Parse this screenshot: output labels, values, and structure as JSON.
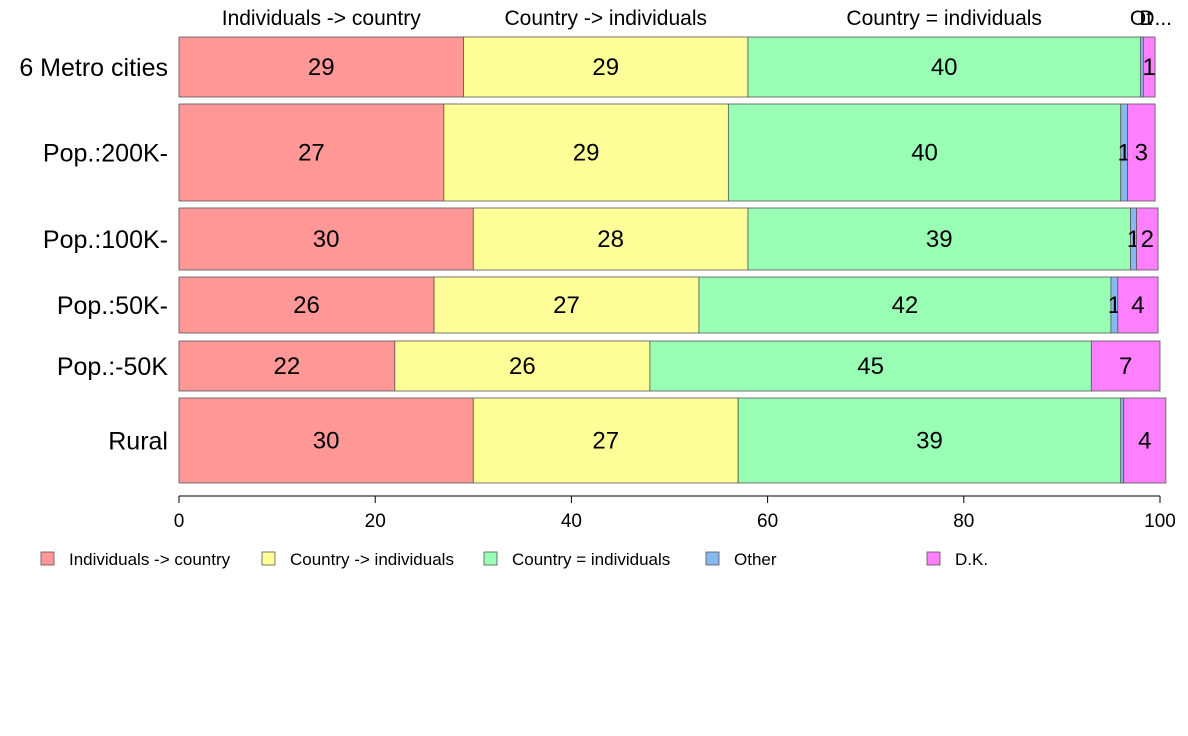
{
  "chart_data": {
    "type": "bar",
    "orientation": "horizontal",
    "stacked": true,
    "categories": [
      "6 Metro cities",
      "Pop.:200K-",
      "Pop.:100K-",
      "Pop.:50K-",
      "Pop.:-50K",
      "Rural"
    ],
    "series": [
      {
        "name": "Individuals -> country",
        "color": "#ff9896",
        "values": [
          29,
          27,
          30,
          26,
          22,
          30
        ],
        "labels": [
          "29",
          "27",
          "30",
          "26",
          "22",
          "30"
        ]
      },
      {
        "name": "Country -> individuals",
        "color": "#ffff99",
        "values": [
          29,
          29,
          28,
          27,
          26,
          27
        ],
        "labels": [
          "29",
          "29",
          "28",
          "27",
          "26",
          "27"
        ]
      },
      {
        "name": "Country = individuals",
        "color": "#98ffb4",
        "values": [
          40,
          40,
          39,
          42,
          45,
          39
        ],
        "labels": [
          "40",
          "40",
          "39",
          "42",
          "45",
          "39"
        ]
      },
      {
        "name": "Other",
        "color": "#88b8f0",
        "values": [
          0.3,
          0.7,
          0.6,
          0.7,
          0,
          0.3
        ],
        "labels": [
          "",
          "1",
          "1",
          "1",
          "",
          ""
        ]
      },
      {
        "name": "D.K.",
        "color": "#ff80ff",
        "values": [
          1.2,
          2.8,
          2.2,
          4.1,
          7.0,
          4.3
        ],
        "labels": [
          "1",
          "3",
          "2",
          "4",
          "7",
          "4"
        ]
      }
    ],
    "top_labels": [
      "Individuals -> country",
      "Country -> individuals",
      "Country = individuals",
      "Ot",
      "D..."
    ],
    "xlim": [
      0,
      100
    ],
    "xticks": [
      0,
      20,
      40,
      60,
      80,
      100
    ],
    "grid": false,
    "legend_position": "bottom"
  }
}
